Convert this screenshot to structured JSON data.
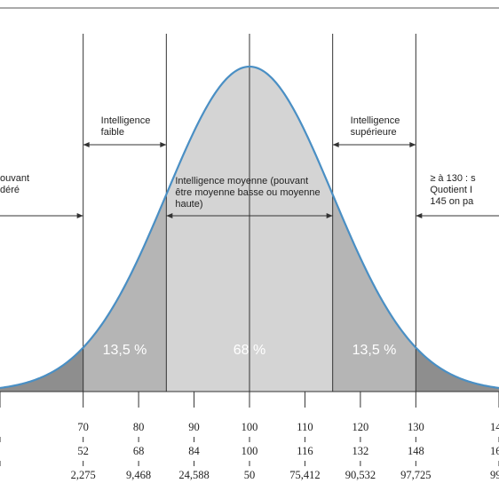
{
  "chart_data": {
    "type": "area",
    "x_domain": [
      55,
      145
    ],
    "mean": 100,
    "sd": 15,
    "regions": [
      {
        "from": 55,
        "to": 70,
        "shade": "dark"
      },
      {
        "from": 70,
        "to": 85,
        "shade": "medium"
      },
      {
        "from": 85,
        "to": 115,
        "shade": "light"
      },
      {
        "from": 115,
        "to": 130,
        "shade": "medium"
      },
      {
        "from": 130,
        "to": 145,
        "shade": "dark"
      }
    ],
    "percent_labels": [
      {
        "x": 77.5,
        "text": "13,5 %"
      },
      {
        "x": 100,
        "text": "68 %"
      },
      {
        "x": 122.5,
        "text": "13,5 %"
      }
    ],
    "category_labels": [
      {
        "id": "left-partial",
        "lines": [
          "ouvant",
          "déré"
        ]
      },
      {
        "id": "faible",
        "lines": [
          "Intelligence",
          "faible"
        ]
      },
      {
        "id": "moyenne",
        "lines": [
          "Intelligence moyenne (pouvant",
          "être moyenne basse ou moyenne",
          "haute)"
        ]
      },
      {
        "id": "superieure",
        "lines": [
          "Intelligence",
          "supérieure"
        ]
      },
      {
        "id": "right-partial",
        "lines": [
          "≥ à 130 : s",
          "Quotient I",
          "145 on pa"
        ]
      }
    ],
    "tick_rows": [
      {
        "x": [
          55,
          70,
          80,
          90,
          100,
          110,
          120,
          130,
          145
        ],
        "labels": [
          "",
          "70",
          "80",
          "90",
          "100",
          "110",
          "120",
          "130",
          "14"
        ]
      },
      {
        "x": [
          55,
          70,
          80,
          90,
          100,
          110,
          120,
          130,
          145
        ],
        "labels": [
          "",
          "52",
          "68",
          "84",
          "100",
          "116",
          "132",
          "148",
          "16"
        ]
      },
      {
        "x": [
          55,
          70,
          80,
          90,
          100,
          110,
          120,
          130,
          145
        ],
        "labels": [
          "",
          "2,275",
          "9,468",
          "24,588",
          "50",
          "75,412",
          "90,532",
          "97,725",
          "99,"
        ]
      }
    ],
    "colors": {
      "curve": "#4a8fc4",
      "dark": "#8e8e8e",
      "medium": "#b5b5b5",
      "light": "#d4d4d4",
      "lines": "#333333"
    }
  }
}
